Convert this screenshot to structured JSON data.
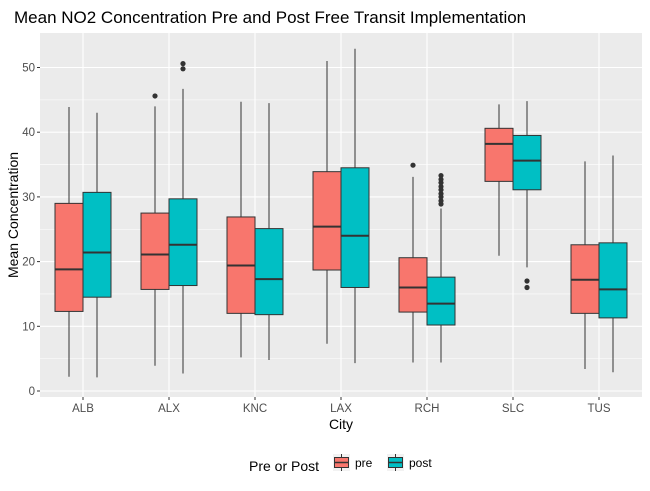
{
  "chart_data": {
    "type": "boxplot",
    "title": "Mean NO2 Concentration Pre and Post Free Transit Implementation",
    "xlabel": "City",
    "ylabel": "Mean Concentration",
    "ylim": [
      0,
      55
    ],
    "yticks": [
      0,
      10,
      20,
      30,
      40,
      50
    ],
    "categories": [
      "ALB",
      "ALX",
      "KNC",
      "LAX",
      "RCH",
      "SLC",
      "TUS"
    ],
    "legend": {
      "title": "Pre or Post",
      "position": "bottom"
    },
    "grid": true,
    "series": [
      {
        "name": "pre",
        "color": "#F8766D",
        "boxes": [
          {
            "min": 2.2,
            "q1": 12.3,
            "median": 18.8,
            "q3": 29.0,
            "max": 43.9,
            "outliers": []
          },
          {
            "min": 3.9,
            "q1": 15.7,
            "median": 21.1,
            "q3": 27.5,
            "max": 44.0,
            "outliers": [
              45.6
            ]
          },
          {
            "min": 5.2,
            "q1": 12.0,
            "median": 19.4,
            "q3": 26.9,
            "max": 44.7,
            "outliers": []
          },
          {
            "min": 7.3,
            "q1": 18.7,
            "median": 25.4,
            "q3": 33.9,
            "max": 51.0,
            "outliers": []
          },
          {
            "min": 4.4,
            "q1": 12.2,
            "median": 16.0,
            "q3": 20.6,
            "max": 33.1,
            "outliers": [
              34.9
            ]
          },
          {
            "min": 20.9,
            "q1": 32.4,
            "median": 38.2,
            "q3": 40.6,
            "max": 44.3,
            "outliers": []
          },
          {
            "min": 3.4,
            "q1": 12.0,
            "median": 17.2,
            "q3": 22.6,
            "max": 35.5,
            "outliers": []
          }
        ]
      },
      {
        "name": "post",
        "color": "#00BFC4",
        "boxes": [
          {
            "min": 2.1,
            "q1": 14.5,
            "median": 21.4,
            "q3": 30.7,
            "max": 43.0,
            "outliers": []
          },
          {
            "min": 2.7,
            "q1": 16.3,
            "median": 22.6,
            "q3": 29.7,
            "max": 46.7,
            "outliers": [
              49.8,
              50.6
            ]
          },
          {
            "min": 4.8,
            "q1": 11.8,
            "median": 17.3,
            "q3": 25.1,
            "max": 44.5,
            "outliers": []
          },
          {
            "min": 4.3,
            "q1": 16.0,
            "median": 24.0,
            "q3": 34.5,
            "max": 52.9,
            "outliers": []
          },
          {
            "min": 4.4,
            "q1": 10.2,
            "median": 13.5,
            "q3": 17.6,
            "max": 28.2,
            "outliers": [
              28.9,
              29.4,
              30.0,
              30.5,
              31.1,
              31.6,
              32.2,
              32.7,
              33.3
            ]
          },
          {
            "min": 19.1,
            "q1": 31.1,
            "median": 35.6,
            "q3": 39.5,
            "max": 44.8,
            "outliers": [
              16.0,
              17.0
            ]
          },
          {
            "min": 2.9,
            "q1": 11.3,
            "median": 15.7,
            "q3": 22.9,
            "max": 36.4,
            "outliers": []
          }
        ]
      }
    ]
  }
}
